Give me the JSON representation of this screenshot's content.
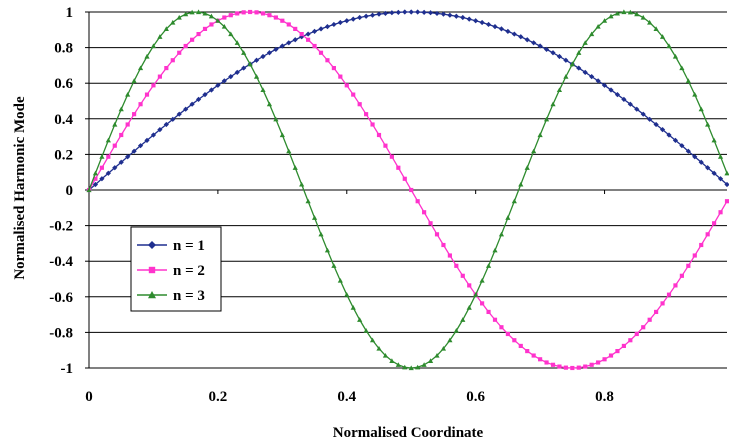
{
  "chart_data": {
    "type": "line",
    "title": "",
    "xlabel": "Normalised Coordinate",
    "ylabel": "Normalised Harmonic Mode",
    "xlim": [
      0,
      0.99
    ],
    "ylim": [
      -1,
      1
    ],
    "x_ticks": [
      "0",
      "0.2",
      "0.4",
      "0.6",
      "0.8"
    ],
    "x_tick_values": [
      0,
      0.2,
      0.4,
      0.6,
      0.8
    ],
    "y_ticks": [
      "1",
      "0.8",
      "0.6",
      "0.4",
      "0.2",
      "0",
      "-0.2",
      "-0.4",
      "-0.6",
      "-0.8",
      "-1"
    ],
    "y_tick_values": [
      1,
      0.8,
      0.6,
      0.4,
      0.2,
      0,
      -0.2,
      -0.4,
      -0.6,
      -0.8,
      -1
    ],
    "grid": "horizontal",
    "legend_position": "bottom-left",
    "x": [
      0,
      0.01,
      0.02,
      0.03,
      0.04,
      0.05,
      0.06,
      0.07,
      0.08,
      0.09,
      0.1,
      0.11,
      0.12,
      0.13,
      0.14,
      0.15,
      0.16,
      0.17,
      0.18,
      0.19,
      0.2,
      0.21,
      0.22,
      0.23,
      0.24,
      0.25,
      0.26,
      0.27,
      0.28,
      0.29,
      0.3,
      0.31,
      0.32,
      0.33,
      0.34,
      0.35,
      0.36,
      0.37,
      0.38,
      0.39,
      0.4,
      0.41,
      0.42,
      0.43,
      0.44,
      0.45,
      0.46,
      0.47,
      0.48,
      0.49,
      0.5,
      0.51,
      0.52,
      0.53,
      0.54,
      0.55,
      0.56,
      0.57,
      0.58,
      0.59,
      0.6,
      0.61,
      0.62,
      0.63,
      0.64,
      0.65,
      0.66,
      0.67,
      0.68,
      0.69,
      0.7,
      0.71,
      0.72,
      0.73,
      0.74,
      0.75,
      0.76,
      0.77,
      0.78,
      0.79,
      0.8,
      0.81,
      0.82,
      0.83,
      0.84,
      0.85,
      0.86,
      0.87,
      0.88,
      0.89,
      0.9,
      0.91,
      0.92,
      0.93,
      0.94,
      0.95,
      0.96,
      0.97,
      0.98,
      0.99
    ],
    "series": [
      {
        "name": "n = 1",
        "color": "#1f2f8f",
        "marker": "diamond",
        "values": [
          0,
          0.031,
          0.063,
          0.094,
          0.125,
          0.156,
          0.187,
          0.218,
          0.249,
          0.279,
          0.309,
          0.339,
          0.368,
          0.397,
          0.426,
          0.454,
          0.482,
          0.509,
          0.536,
          0.562,
          0.588,
          0.613,
          0.637,
          0.661,
          0.685,
          0.707,
          0.729,
          0.75,
          0.771,
          0.79,
          0.809,
          0.827,
          0.844,
          0.861,
          0.876,
          0.891,
          0.905,
          0.918,
          0.93,
          0.941,
          0.951,
          0.96,
          0.969,
          0.976,
          0.982,
          0.988,
          0.992,
          0.996,
          0.998,
          1.0,
          1.0,
          1.0,
          0.998,
          0.996,
          0.992,
          0.988,
          0.982,
          0.976,
          0.969,
          0.96,
          0.951,
          0.941,
          0.93,
          0.918,
          0.905,
          0.891,
          0.876,
          0.861,
          0.844,
          0.827,
          0.809,
          0.79,
          0.771,
          0.75,
          0.729,
          0.707,
          0.685,
          0.661,
          0.637,
          0.613,
          0.588,
          0.562,
          0.536,
          0.509,
          0.482,
          0.454,
          0.426,
          0.397,
          0.368,
          0.339,
          0.309,
          0.279,
          0.249,
          0.218,
          0.187,
          0.156,
          0.125,
          0.094,
          0.063,
          0.031
        ]
      },
      {
        "name": "n = 2",
        "color": "#ff33cc",
        "marker": "square",
        "values": [
          0,
          0.063,
          0.125,
          0.187,
          0.249,
          0.309,
          0.368,
          0.426,
          0.482,
          0.536,
          0.588,
          0.637,
          0.685,
          0.729,
          0.771,
          0.809,
          0.844,
          0.876,
          0.905,
          0.93,
          0.951,
          0.969,
          0.982,
          0.992,
          0.998,
          1.0,
          0.998,
          0.992,
          0.982,
          0.969,
          0.951,
          0.93,
          0.905,
          0.876,
          0.844,
          0.809,
          0.771,
          0.729,
          0.685,
          0.637,
          0.588,
          0.536,
          0.482,
          0.426,
          0.368,
          0.309,
          0.249,
          0.187,
          0.125,
          0.063,
          0,
          -0.063,
          -0.125,
          -0.187,
          -0.249,
          -0.309,
          -0.368,
          -0.426,
          -0.482,
          -0.536,
          -0.588,
          -0.637,
          -0.685,
          -0.729,
          -0.771,
          -0.809,
          -0.844,
          -0.876,
          -0.905,
          -0.93,
          -0.951,
          -0.969,
          -0.982,
          -0.992,
          -0.998,
          -1.0,
          -0.998,
          -0.992,
          -0.982,
          -0.969,
          -0.951,
          -0.93,
          -0.905,
          -0.876,
          -0.844,
          -0.809,
          -0.771,
          -0.729,
          -0.685,
          -0.637,
          -0.588,
          -0.536,
          -0.482,
          -0.426,
          -0.368,
          -0.309,
          -0.249,
          -0.187,
          -0.125,
          -0.063
        ]
      },
      {
        "name": "n = 3",
        "color": "#2e8b2e",
        "marker": "triangle",
        "values": [
          0,
          0.094,
          0.187,
          0.279,
          0.368,
          0.454,
          0.536,
          0.613,
          0.685,
          0.75,
          0.809,
          0.861,
          0.905,
          0.941,
          0.969,
          0.988,
          0.998,
          1.0,
          0.992,
          0.976,
          0.951,
          0.918,
          0.876,
          0.827,
          0.771,
          0.707,
          0.637,
          0.562,
          0.482,
          0.397,
          0.309,
          0.218,
          0.125,
          0.031,
          -0.063,
          -0.156,
          -0.249,
          -0.339,
          -0.426,
          -0.509,
          -0.588,
          -0.661,
          -0.729,
          -0.79,
          -0.844,
          -0.891,
          -0.93,
          -0.96,
          -0.982,
          -0.996,
          -1.0,
          -0.996,
          -0.982,
          -0.96,
          -0.93,
          -0.891,
          -0.844,
          -0.79,
          -0.729,
          -0.661,
          -0.588,
          -0.509,
          -0.426,
          -0.339,
          -0.249,
          -0.156,
          -0.063,
          0.031,
          0.125,
          0.218,
          0.309,
          0.397,
          0.482,
          0.562,
          0.637,
          0.707,
          0.771,
          0.827,
          0.876,
          0.918,
          0.951,
          0.976,
          0.992,
          1.0,
          0.998,
          0.988,
          0.969,
          0.941,
          0.905,
          0.861,
          0.809,
          0.75,
          0.685,
          0.613,
          0.536,
          0.454,
          0.368,
          0.279,
          0.187,
          0.094
        ]
      }
    ]
  }
}
